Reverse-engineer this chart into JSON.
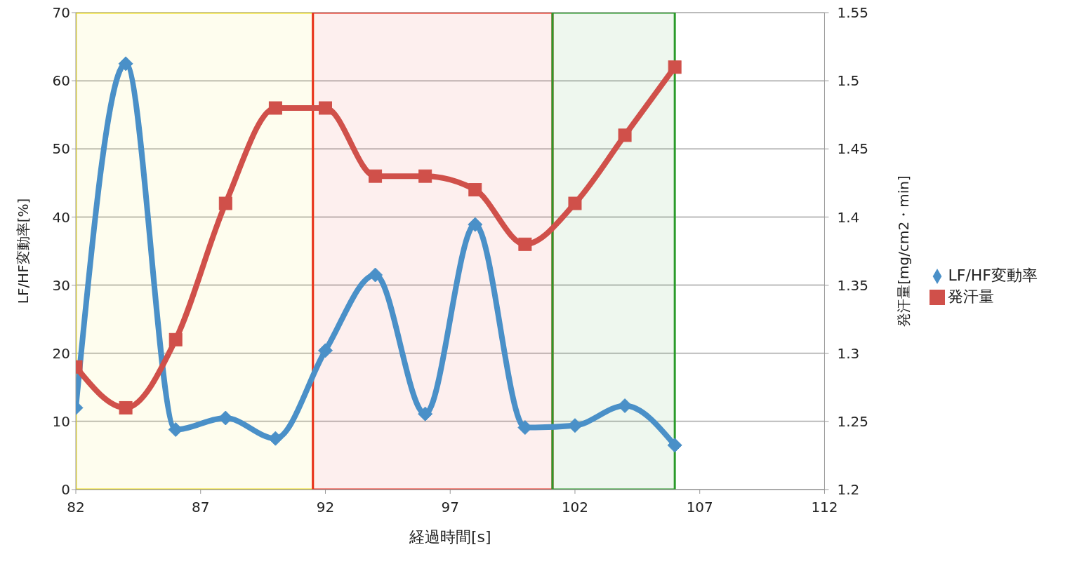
{
  "chart_data": {
    "type": "line",
    "x": [
      82,
      84,
      86,
      88,
      90,
      92,
      94,
      96,
      98,
      100,
      102,
      104,
      106
    ],
    "series": [
      {
        "name": "LF/HF変動率",
        "color": "#4a90c8",
        "marker": "diamond",
        "values": [
          12,
          62.5,
          8.8,
          10.5,
          7.5,
          20.4,
          31.5,
          11.1,
          38.9,
          9.1,
          9.4,
          12.3,
          6.5
        ]
      },
      {
        "name": "発汗量",
        "color": "#d0504a",
        "marker": "square",
        "axis": "y2",
        "values": [
          1.29,
          1.26,
          1.31,
          1.41,
          1.48,
          1.48,
          1.43,
          1.43,
          1.42,
          1.38,
          1.41,
          1.46,
          1.51
        ]
      }
    ],
    "xlabel": "経過時間[s]",
    "ylabel": "LF/HF変動率[%]",
    "y2label": "発汗量[mg/cm2・min]",
    "xlim": [
      82,
      112
    ],
    "xticks": [
      82,
      87,
      92,
      97,
      102,
      107,
      112
    ],
    "ylim": [
      0,
      70
    ],
    "yticks": [
      0,
      10,
      20,
      30,
      40,
      50,
      60,
      70
    ],
    "y2lim": [
      1.2,
      1.55
    ],
    "y2ticks": [
      1.2,
      1.25,
      1.3,
      1.35,
      1.4,
      1.45,
      1.5,
      1.55
    ],
    "bands": [
      {
        "axis": "x",
        "from": 82,
        "to": 91.5,
        "color": "#f0e020"
      },
      {
        "axis": "x",
        "from": 91.5,
        "to": 101.1,
        "color": "#e83020"
      },
      {
        "axis": "x",
        "from": 101.1,
        "to": 106,
        "color": "#2a9a2a"
      }
    ],
    "grid": "y",
    "legend": "right",
    "line_style": "solid"
  }
}
